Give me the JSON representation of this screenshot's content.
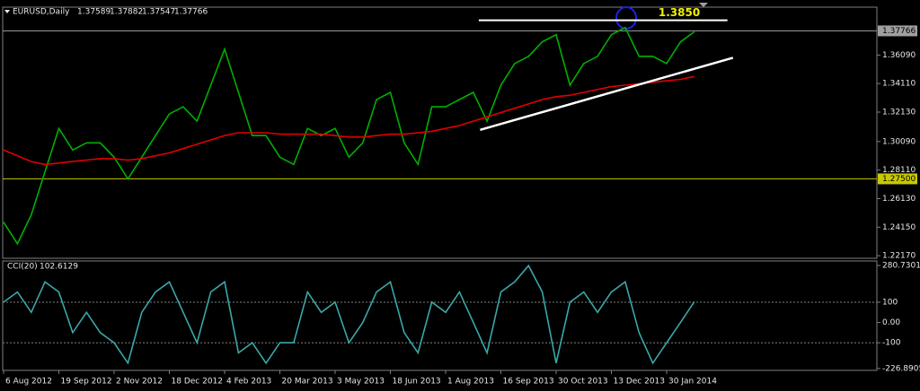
{
  "chart_data": [
    {
      "type": "line",
      "symbol": "EURUSD,Daily",
      "ohlc": [
        1.37589,
        1.37882,
        1.37547,
        1.37766
      ],
      "ylim": [
        1.2199,
        1.3941
      ],
      "yticks": [
        {
          "value": 1.3609,
          "label": "1.36090"
        },
        {
          "value": 1.3411,
          "label": "1.34110"
        },
        {
          "value": 1.3213,
          "label": "1.32130"
        },
        {
          "value": 1.3009,
          "label": "1.30090"
        },
        {
          "value": 1.2811,
          "label": "1.28110"
        },
        {
          "value": 1.2613,
          "label": "1.26130"
        },
        {
          "value": 1.2415,
          "label": "1.24150"
        },
        {
          "value": 1.2217,
          "label": "1.22170"
        }
      ],
      "series": [
        {
          "color": "#00b000",
          "values": [
            1.245,
            1.23,
            1.25,
            1.28,
            1.31,
            1.295,
            1.3,
            1.3,
            1.29,
            1.275,
            1.29,
            1.305,
            1.32,
            1.325,
            1.315,
            1.34,
            1.365,
            1.335,
            1.305,
            1.305,
            1.29,
            1.285,
            1.31,
            1.305,
            1.31,
            1.29,
            1.3,
            1.33,
            1.335,
            1.3,
            1.285,
            1.325,
            1.325,
            1.33,
            1.335,
            1.315,
            1.34,
            1.355,
            1.36,
            1.37,
            1.375,
            1.34,
            1.355,
            1.36,
            1.375,
            1.38,
            1.36,
            1.36,
            1.355,
            1.37,
            1.377
          ]
        },
        {
          "color": "#e00000",
          "values": [
            1.295,
            1.291,
            1.287,
            1.285,
            1.286,
            1.287,
            1.288,
            1.289,
            1.289,
            1.288,
            1.289,
            1.291,
            1.293,
            1.296,
            1.299,
            1.302,
            1.305,
            1.307,
            1.307,
            1.307,
            1.306,
            1.306,
            1.306,
            1.306,
            1.305,
            1.304,
            1.304,
            1.305,
            1.306,
            1.306,
            1.307,
            1.308,
            1.31,
            1.312,
            1.315,
            1.318,
            1.321,
            1.324,
            1.327,
            1.33,
            1.332,
            1.333,
            1.335,
            1.337,
            1.339,
            1.34,
            1.341,
            1.342,
            1.343,
            1.344,
            1.346
          ]
        }
      ],
      "levels": [
        {
          "value": 1.385,
          "label": "1.3850",
          "color": "#ffffff",
          "x": [
            34.4,
            52.4
          ]
        },
        {
          "value": 1.37766,
          "label": "1.37766",
          "color": "#a0a0a0"
        },
        {
          "value": 1.275,
          "label": "1.27500",
          "color": "#c8c800"
        }
      ],
      "trendline": {
        "x": [
          34.5,
          52.8
        ],
        "values": [
          1.309,
          1.359
        ],
        "color": "#ffffff"
      }
    },
    {
      "type": "line",
      "title": "CCI(20)",
      "ylim": [
        -236,
        303
      ],
      "yticks": [
        280.7301,
        100,
        {
          "value": 0,
          "label": "0.00"
        },
        -100,
        -226.8905
      ],
      "levels": [
        100,
        -100
      ],
      "categories": [
        "6 Aug 2012",
        null,
        null,
        null,
        "19 Sep 2012",
        null,
        null,
        null,
        "2 Nov 2012",
        null,
        null,
        null,
        "18 Dec 2012",
        null,
        null,
        null,
        "4 Feb 2013",
        null,
        null,
        null,
        "20 Mar 2013",
        null,
        null,
        null,
        "3 May 2013",
        null,
        null,
        null,
        "18 Jun 2013",
        null,
        null,
        null,
        "1 Aug 2013",
        null,
        null,
        null,
        "16 Sep 2013",
        null,
        null,
        null,
        "30 Oct 2013",
        null,
        null,
        null,
        "13 Dec 2013",
        null,
        null,
        null,
        "30 Jan 2014",
        null,
        null
      ],
      "series": [
        {
          "color": "#3aa8a8",
          "values": [
            100,
            150,
            50,
            200,
            150,
            -50,
            50,
            -50,
            -100,
            -200,
            50,
            150,
            200,
            50,
            -100,
            150,
            200,
            -150,
            -100,
            -200,
            -100,
            -100,
            150,
            50,
            100,
            -100,
            0,
            150,
            200,
            -50,
            -150,
            100,
            50,
            150,
            0,
            -150,
            150,
            200,
            280,
            150,
            -200,
            100,
            150,
            50,
            150,
            200,
            -50,
            -200,
            -100,
            0,
            102.6129
          ]
        }
      ]
    }
  ]
}
